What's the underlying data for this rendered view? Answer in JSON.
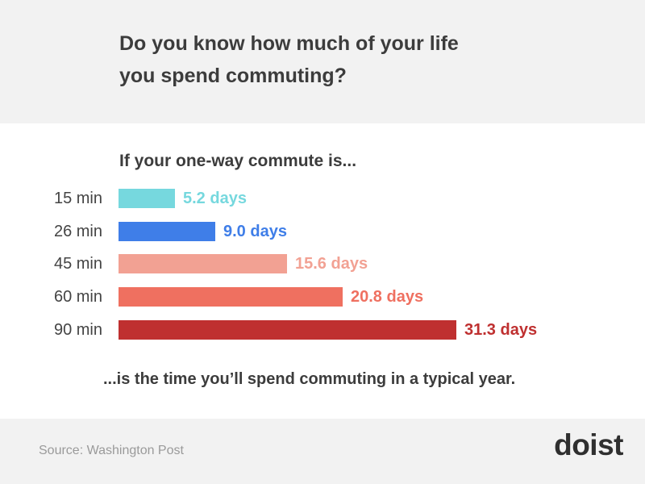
{
  "title_line1": "Do you know how much of your life",
  "title_line2": "you spend commuting?",
  "subtitle": "If your one-way commute is...",
  "caption": "...is the time you’ll spend commuting in a typical year.",
  "source": "Source: Washington Post",
  "logo": "doist",
  "chart_data": {
    "type": "bar",
    "orientation": "horizontal",
    "categories": [
      "15 min",
      "26 min",
      "45 min",
      "60 min",
      "90 min"
    ],
    "values": [
      5.2,
      9.0,
      15.6,
      20.8,
      31.3
    ],
    "value_labels": [
      "5.2 days",
      "9.0 days",
      "15.6 days",
      "20.8 days",
      "31.3 days"
    ],
    "colors": [
      "#76d8de",
      "#3f7ee8",
      "#f2a193",
      "#ef7060",
      "#bf3030"
    ],
    "title": "",
    "xlabel": "",
    "ylabel": "",
    "xlim": [
      0,
      31.3
    ],
    "grid": false
  }
}
